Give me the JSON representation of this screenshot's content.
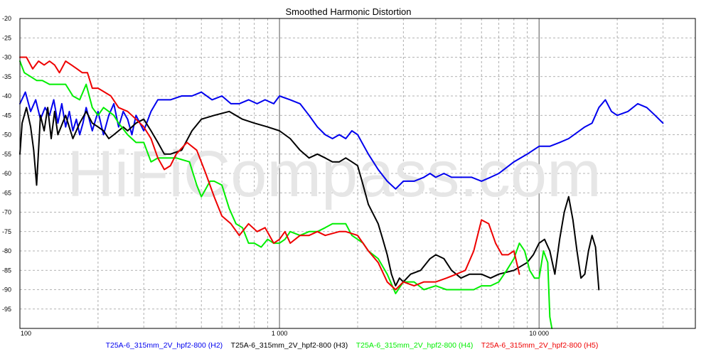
{
  "title": "Smoothed Harmonic Distortion",
  "watermark": "HiFiCompass.com",
  "chart_data": {
    "type": "line",
    "title": "Smoothed Harmonic Distortion",
    "xscale": "log",
    "xlim": [
      100,
      40000
    ],
    "ylim": [
      -100,
      -20
    ],
    "grid": true,
    "legend_position": "bottom",
    "x_tick_labels": [
      {
        "x": 100,
        "label": "100"
      },
      {
        "x": 1000,
        "label": "1 000"
      },
      {
        "x": 10000,
        "label": "10 000"
      }
    ],
    "y_ticks": [
      -20,
      -25,
      -30,
      -35,
      -40,
      -45,
      -50,
      -55,
      -60,
      -65,
      -70,
      -75,
      -80,
      -85,
      -90,
      -95
    ],
    "series": [
      {
        "name": "T25A-6_315mm_2V_hpf2-800 (H2)",
        "color": "#0000ee",
        "points": [
          [
            100,
            -42
          ],
          [
            105,
            -39
          ],
          [
            110,
            -44
          ],
          [
            115,
            -41
          ],
          [
            120,
            -46
          ],
          [
            125,
            -43
          ],
          [
            130,
            -45
          ],
          [
            135,
            -41
          ],
          [
            140,
            -47
          ],
          [
            145,
            -42
          ],
          [
            150,
            -48
          ],
          [
            155,
            -44
          ],
          [
            160,
            -49
          ],
          [
            165,
            -46
          ],
          [
            170,
            -50
          ],
          [
            175,
            -47
          ],
          [
            180,
            -43
          ],
          [
            190,
            -49
          ],
          [
            200,
            -44
          ],
          [
            210,
            -50
          ],
          [
            220,
            -45
          ],
          [
            230,
            -42
          ],
          [
            240,
            -48
          ],
          [
            250,
            -44
          ],
          [
            260,
            -46
          ],
          [
            270,
            -50
          ],
          [
            280,
            -45
          ],
          [
            290,
            -47
          ],
          [
            300,
            -49
          ],
          [
            320,
            -44
          ],
          [
            340,
            -41
          ],
          [
            380,
            -41
          ],
          [
            420,
            -40
          ],
          [
            460,
            -40
          ],
          [
            500,
            -39
          ],
          [
            550,
            -41
          ],
          [
            600,
            -40
          ],
          [
            650,
            -42
          ],
          [
            700,
            -42
          ],
          [
            760,
            -41
          ],
          [
            820,
            -42
          ],
          [
            880,
            -41
          ],
          [
            950,
            -42
          ],
          [
            1000,
            -40
          ],
          [
            1100,
            -41
          ],
          [
            1200,
            -42
          ],
          [
            1300,
            -45
          ],
          [
            1400,
            -48
          ],
          [
            1500,
            -50
          ],
          [
            1600,
            -51
          ],
          [
            1700,
            -50
          ],
          [
            1800,
            -51
          ],
          [
            1900,
            -49
          ],
          [
            2000,
            -50
          ],
          [
            2200,
            -55
          ],
          [
            2400,
            -59
          ],
          [
            2600,
            -62
          ],
          [
            2800,
            -64
          ],
          [
            3000,
            -62
          ],
          [
            3300,
            -62
          ],
          [
            3600,
            -61
          ],
          [
            3800,
            -60
          ],
          [
            4000,
            -61
          ],
          [
            4300,
            -60
          ],
          [
            4600,
            -61
          ],
          [
            5000,
            -61
          ],
          [
            5500,
            -61
          ],
          [
            6000,
            -62
          ],
          [
            6500,
            -61
          ],
          [
            7000,
            -60
          ],
          [
            8000,
            -57
          ],
          [
            9000,
            -55
          ],
          [
            10000,
            -53
          ],
          [
            11000,
            -53
          ],
          [
            12000,
            -52
          ],
          [
            13000,
            -51
          ],
          [
            15000,
            -48
          ],
          [
            16000,
            -47
          ],
          [
            17000,
            -43
          ],
          [
            18000,
            -41
          ],
          [
            19000,
            -44
          ],
          [
            20000,
            -45
          ],
          [
            22000,
            -44
          ],
          [
            24000,
            -42
          ],
          [
            26000,
            -43
          ],
          [
            28000,
            -45
          ],
          [
            30000,
            -47
          ]
        ]
      },
      {
        "name": "T25A-6_315mm_2V_hpf2-800 (H3)",
        "color": "#000000",
        "points": [
          [
            100,
            -55
          ],
          [
            102,
            -47
          ],
          [
            106,
            -43
          ],
          [
            110,
            -48
          ],
          [
            113,
            -54
          ],
          [
            116,
            -63
          ],
          [
            120,
            -45
          ],
          [
            124,
            -49
          ],
          [
            128,
            -43
          ],
          [
            132,
            -51
          ],
          [
            136,
            -44
          ],
          [
            140,
            -50
          ],
          [
            150,
            -45
          ],
          [
            160,
            -51
          ],
          [
            170,
            -47
          ],
          [
            180,
            -44
          ],
          [
            190,
            -47
          ],
          [
            200,
            -48
          ],
          [
            210,
            -49
          ],
          [
            220,
            -51
          ],
          [
            230,
            -50
          ],
          [
            240,
            -49
          ],
          [
            250,
            -48
          ],
          [
            260,
            -49
          ],
          [
            280,
            -47
          ],
          [
            300,
            -46
          ],
          [
            320,
            -49
          ],
          [
            340,
            -52
          ],
          [
            360,
            -55
          ],
          [
            380,
            -55
          ],
          [
            420,
            -54
          ],
          [
            460,
            -49
          ],
          [
            500,
            -46
          ],
          [
            560,
            -45
          ],
          [
            640,
            -44
          ],
          [
            720,
            -46
          ],
          [
            800,
            -47
          ],
          [
            900,
            -48
          ],
          [
            1000,
            -49
          ],
          [
            1100,
            -51
          ],
          [
            1200,
            -54
          ],
          [
            1300,
            -56
          ],
          [
            1400,
            -55
          ],
          [
            1500,
            -56
          ],
          [
            1600,
            -57
          ],
          [
            1700,
            -57
          ],
          [
            1800,
            -56
          ],
          [
            1900,
            -57
          ],
          [
            2000,
            -58
          ],
          [
            2100,
            -63
          ],
          [
            2200,
            -68
          ],
          [
            2400,
            -73
          ],
          [
            2500,
            -77
          ],
          [
            2600,
            -81
          ],
          [
            2700,
            -86
          ],
          [
            2800,
            -89
          ],
          [
            2900,
            -87
          ],
          [
            3000,
            -88
          ],
          [
            3200,
            -86
          ],
          [
            3500,
            -85
          ],
          [
            3800,
            -82
          ],
          [
            4000,
            -81
          ],
          [
            4300,
            -82
          ],
          [
            4600,
            -85
          ],
          [
            5000,
            -87
          ],
          [
            5400,
            -86
          ],
          [
            6000,
            -86
          ],
          [
            6500,
            -87
          ],
          [
            7000,
            -86
          ],
          [
            8000,
            -85
          ],
          [
            9000,
            -83
          ],
          [
            9500,
            -81
          ],
          [
            10000,
            -78
          ],
          [
            10500,
            -77
          ],
          [
            11000,
            -80
          ],
          [
            11500,
            -86
          ],
          [
            12000,
            -77
          ],
          [
            12500,
            -70
          ],
          [
            13000,
            -66
          ],
          [
            13500,
            -72
          ],
          [
            14000,
            -80
          ],
          [
            14500,
            -87
          ],
          [
            15000,
            -86
          ],
          [
            15500,
            -80
          ],
          [
            16000,
            -76
          ],
          [
            16500,
            -79
          ],
          [
            17000,
            -90
          ]
        ]
      },
      {
        "name": "T25A-6_315mm_2V_hpf2-800 (H4)",
        "color": "#00ee00",
        "points": [
          [
            100,
            -31
          ],
          [
            104,
            -34
          ],
          [
            110,
            -35
          ],
          [
            116,
            -36
          ],
          [
            122,
            -36
          ],
          [
            130,
            -37
          ],
          [
            140,
            -37
          ],
          [
            150,
            -37
          ],
          [
            160,
            -40
          ],
          [
            170,
            -41
          ],
          [
            180,
            -37
          ],
          [
            190,
            -43
          ],
          [
            200,
            -45
          ],
          [
            210,
            -43
          ],
          [
            220,
            -44
          ],
          [
            230,
            -45
          ],
          [
            240,
            -47
          ],
          [
            260,
            -50
          ],
          [
            280,
            -52
          ],
          [
            300,
            -52
          ],
          [
            320,
            -57
          ],
          [
            340,
            -56
          ],
          [
            400,
            -56
          ],
          [
            450,
            -57
          ],
          [
            480,
            -63
          ],
          [
            500,
            -66
          ],
          [
            520,
            -64
          ],
          [
            540,
            -62
          ],
          [
            560,
            -62
          ],
          [
            600,
            -63
          ],
          [
            640,
            -69
          ],
          [
            680,
            -73
          ],
          [
            720,
            -74
          ],
          [
            760,
            -78
          ],
          [
            800,
            -78
          ],
          [
            850,
            -79
          ],
          [
            900,
            -77
          ],
          [
            950,
            -78
          ],
          [
            1000,
            -78
          ],
          [
            1050,
            -77
          ],
          [
            1100,
            -75
          ],
          [
            1200,
            -76
          ],
          [
            1300,
            -75
          ],
          [
            1400,
            -75
          ],
          [
            1500,
            -74
          ],
          [
            1600,
            -73
          ],
          [
            1800,
            -73
          ],
          [
            1900,
            -76
          ],
          [
            2000,
            -77
          ],
          [
            2100,
            -78
          ],
          [
            2200,
            -80
          ],
          [
            2400,
            -82
          ],
          [
            2600,
            -86
          ],
          [
            2800,
            -91
          ],
          [
            3000,
            -88
          ],
          [
            3300,
            -88
          ],
          [
            3600,
            -90
          ],
          [
            4000,
            -89
          ],
          [
            4400,
            -90
          ],
          [
            4800,
            -90
          ],
          [
            5200,
            -90
          ],
          [
            5600,
            -90
          ],
          [
            6000,
            -89
          ],
          [
            6500,
            -89
          ],
          [
            7000,
            -88
          ],
          [
            7500,
            -85
          ],
          [
            8000,
            -82
          ],
          [
            8400,
            -78
          ],
          [
            8800,
            -80
          ],
          [
            9200,
            -85
          ],
          [
            9600,
            -87
          ],
          [
            10000,
            -87
          ],
          [
            10400,
            -80
          ],
          [
            10800,
            -83
          ],
          [
            11000,
            -97
          ],
          [
            11200,
            -100
          ]
        ]
      },
      {
        "name": "T25A-6_315mm_2V_hpf2-800 (H5)",
        "color": "#ee0000",
        "points": [
          [
            100,
            -30
          ],
          [
            106,
            -30
          ],
          [
            112,
            -33
          ],
          [
            118,
            -31
          ],
          [
            124,
            -32
          ],
          [
            130,
            -31
          ],
          [
            136,
            -32
          ],
          [
            142,
            -34
          ],
          [
            150,
            -31
          ],
          [
            158,
            -32
          ],
          [
            166,
            -33
          ],
          [
            174,
            -34
          ],
          [
            182,
            -34
          ],
          [
            190,
            -38
          ],
          [
            200,
            -38
          ],
          [
            212,
            -39
          ],
          [
            224,
            -40
          ],
          [
            240,
            -43
          ],
          [
            260,
            -44
          ],
          [
            280,
            -46
          ],
          [
            300,
            -48
          ],
          [
            320,
            -51
          ],
          [
            340,
            -56
          ],
          [
            360,
            -59
          ],
          [
            380,
            -58
          ],
          [
            400,
            -55
          ],
          [
            440,
            -52
          ],
          [
            480,
            -54
          ],
          [
            520,
            -60
          ],
          [
            560,
            -66
          ],
          [
            600,
            -71
          ],
          [
            650,
            -73
          ],
          [
            700,
            -76
          ],
          [
            760,
            -73
          ],
          [
            820,
            -75
          ],
          [
            880,
            -74
          ],
          [
            950,
            -78
          ],
          [
            1000,
            -77
          ],
          [
            1050,
            -75
          ],
          [
            1100,
            -78
          ],
          [
            1200,
            -76
          ],
          [
            1300,
            -76
          ],
          [
            1400,
            -75
          ],
          [
            1500,
            -76
          ],
          [
            1700,
            -75
          ],
          [
            1800,
            -75
          ],
          [
            2000,
            -76
          ],
          [
            2200,
            -80
          ],
          [
            2400,
            -83
          ],
          [
            2600,
            -88
          ],
          [
            2800,
            -90
          ],
          [
            3000,
            -88
          ],
          [
            3300,
            -89
          ],
          [
            3600,
            -88
          ],
          [
            4000,
            -88
          ],
          [
            4400,
            -87
          ],
          [
            4800,
            -86
          ],
          [
            5200,
            -85
          ],
          [
            5600,
            -80
          ],
          [
            6000,
            -72
          ],
          [
            6400,
            -73
          ],
          [
            6800,
            -78
          ],
          [
            7200,
            -81
          ],
          [
            7600,
            -81
          ],
          [
            8000,
            -80
          ],
          [
            8400,
            -86
          ]
        ]
      }
    ]
  }
}
